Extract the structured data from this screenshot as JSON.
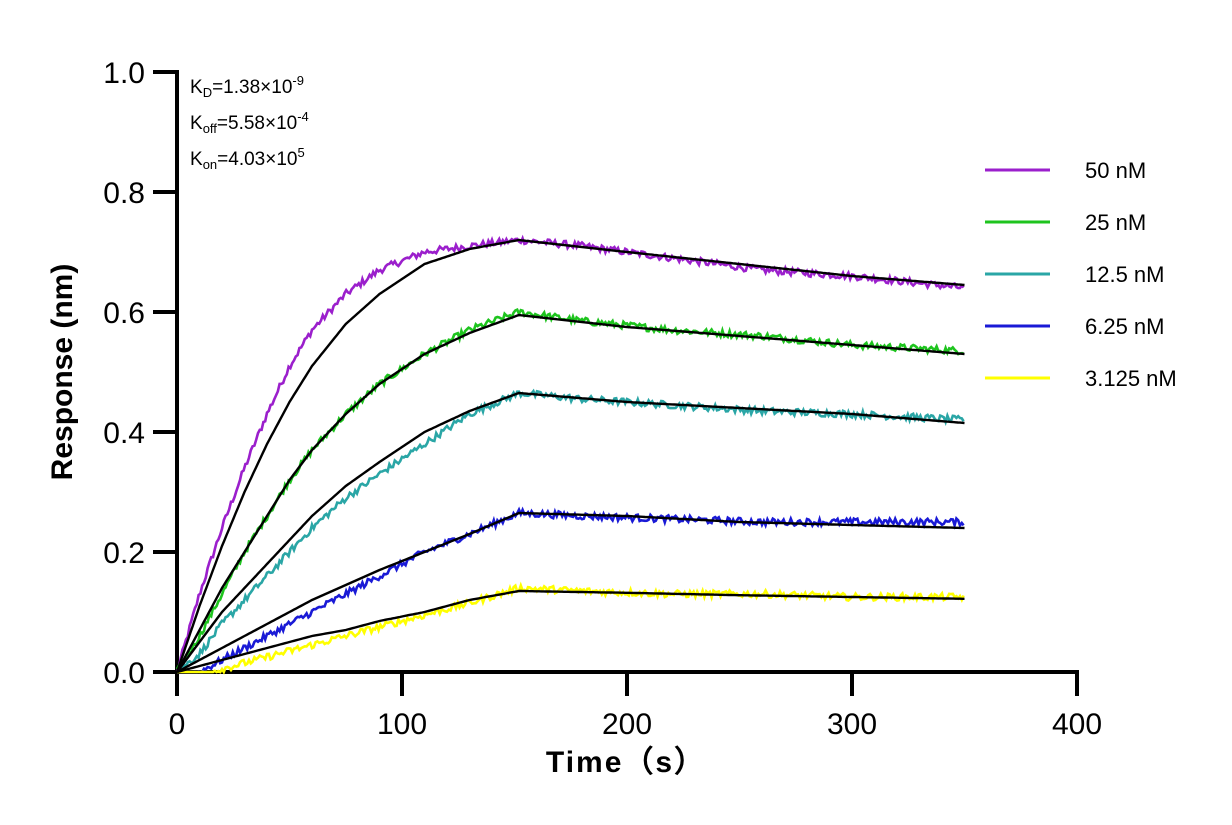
{
  "chart_data": {
    "type": "line",
    "title": "",
    "xlabel": "Time（s）",
    "ylabel": "Response (nm)",
    "xlim": [
      0,
      400
    ],
    "ylim": [
      0,
      1.0
    ],
    "xticks": [
      "0",
      "100",
      "200",
      "300",
      "400"
    ],
    "yticks": [
      "0.0",
      "0.2",
      "0.4",
      "0.6",
      "0.8",
      "1.0"
    ],
    "grid": false,
    "legend_position": "right",
    "annotations": [
      {
        "main": "K",
        "sub": "D",
        "value": "=1.38×10",
        "sup": "-9"
      },
      {
        "main": "K",
        "sub": "off",
        "value": "=5.58×10",
        "sup": "-4"
      },
      {
        "main": "K",
        "sub": "on",
        "value": "=4.03×10",
        "sup": "5"
      }
    ],
    "association_end_x": 152,
    "x_end": 350,
    "series": [
      {
        "name": "50 nM",
        "color": "#9b1fcc",
        "x": [
          0,
          10,
          20,
          30,
          40,
          50,
          60,
          75,
          90,
          110,
          130,
          152,
          180,
          220,
          260,
          300,
          350
        ],
        "y": [
          0.0,
          0.13,
          0.24,
          0.34,
          0.43,
          0.51,
          0.57,
          0.63,
          0.67,
          0.7,
          0.71,
          0.72,
          0.71,
          0.69,
          0.67,
          0.66,
          0.64
        ]
      },
      {
        "name": "25 nM",
        "color": "#1ec41e",
        "x": [
          0,
          10,
          20,
          30,
          40,
          50,
          60,
          75,
          90,
          110,
          130,
          152,
          180,
          220,
          260,
          300,
          350
        ],
        "y": [
          0.0,
          0.06,
          0.13,
          0.2,
          0.26,
          0.32,
          0.37,
          0.43,
          0.48,
          0.53,
          0.57,
          0.6,
          0.585,
          0.57,
          0.56,
          0.545,
          0.535
        ]
      },
      {
        "name": "12.5 nM",
        "color": "#2aa6a6",
        "x": [
          0,
          10,
          20,
          30,
          40,
          50,
          60,
          75,
          90,
          110,
          130,
          152,
          180,
          220,
          260,
          300,
          350
        ],
        "y": [
          0.0,
          0.03,
          0.08,
          0.12,
          0.16,
          0.2,
          0.24,
          0.29,
          0.33,
          0.38,
          0.43,
          0.465,
          0.455,
          0.445,
          0.435,
          0.43,
          0.42
        ]
      },
      {
        "name": "6.25 nM",
        "color": "#1a1ad6",
        "x": [
          0,
          10,
          20,
          30,
          40,
          50,
          60,
          75,
          90,
          110,
          130,
          152,
          180,
          220,
          260,
          300,
          350
        ],
        "y": [
          -0.01,
          0.0,
          0.02,
          0.04,
          0.06,
          0.08,
          0.1,
          0.13,
          0.16,
          0.2,
          0.23,
          0.265,
          0.26,
          0.255,
          0.25,
          0.25,
          0.25
        ]
      },
      {
        "name": "3.125 nM",
        "color": "#ffff00",
        "x": [
          0,
          10,
          20,
          30,
          40,
          50,
          60,
          75,
          90,
          110,
          130,
          152,
          180,
          220,
          260,
          300,
          350
        ],
        "y": [
          -0.01,
          -0.005,
          0.005,
          0.015,
          0.025,
          0.035,
          0.045,
          0.06,
          0.075,
          0.095,
          0.115,
          0.14,
          0.135,
          0.13,
          0.13,
          0.125,
          0.125
        ]
      }
    ],
    "fit_lines": [
      {
        "color": "#000000",
        "x": [
          0,
          10,
          20,
          30,
          40,
          50,
          60,
          75,
          90,
          110,
          130,
          152,
          200,
          250,
          300,
          350
        ],
        "y": [
          0.0,
          0.11,
          0.21,
          0.3,
          0.38,
          0.45,
          0.51,
          0.58,
          0.63,
          0.68,
          0.705,
          0.72,
          0.7,
          0.68,
          0.66,
          0.645
        ]
      },
      {
        "color": "#000000",
        "x": [
          0,
          10,
          20,
          30,
          40,
          50,
          60,
          75,
          90,
          110,
          130,
          152,
          200,
          250,
          300,
          350
        ],
        "y": [
          0.0,
          0.07,
          0.14,
          0.2,
          0.26,
          0.32,
          0.37,
          0.43,
          0.48,
          0.53,
          0.565,
          0.595,
          0.575,
          0.56,
          0.545,
          0.53
        ]
      },
      {
        "color": "#000000",
        "x": [
          0,
          10,
          20,
          30,
          40,
          50,
          60,
          75,
          90,
          110,
          130,
          152,
          200,
          250,
          300,
          350
        ],
        "y": [
          0.0,
          0.05,
          0.1,
          0.14,
          0.18,
          0.22,
          0.26,
          0.31,
          0.35,
          0.4,
          0.435,
          0.465,
          0.45,
          0.44,
          0.43,
          0.415
        ]
      },
      {
        "color": "#000000",
        "x": [
          0,
          10,
          20,
          30,
          40,
          50,
          60,
          75,
          90,
          110,
          130,
          152,
          200,
          250,
          300,
          350
        ],
        "y": [
          0.0,
          0.02,
          0.04,
          0.06,
          0.08,
          0.1,
          0.12,
          0.145,
          0.17,
          0.2,
          0.23,
          0.265,
          0.26,
          0.25,
          0.245,
          0.24
        ]
      },
      {
        "color": "#000000",
        "x": [
          0,
          10,
          20,
          30,
          40,
          50,
          60,
          75,
          90,
          110,
          130,
          152,
          200,
          250,
          300,
          350
        ],
        "y": [
          0.0,
          0.01,
          0.02,
          0.03,
          0.04,
          0.05,
          0.06,
          0.07,
          0.085,
          0.1,
          0.12,
          0.135,
          0.132,
          0.128,
          0.125,
          0.122
        ]
      }
    ]
  }
}
